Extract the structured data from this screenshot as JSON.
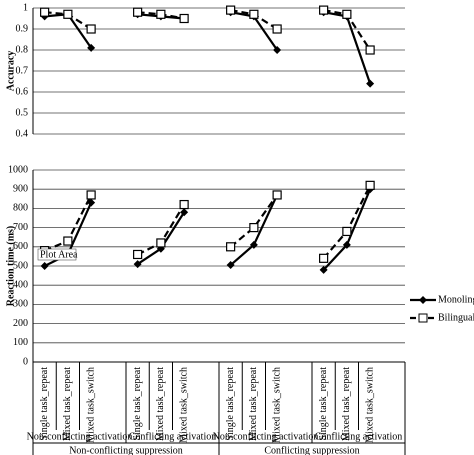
{
  "chart_data": [
    {
      "type": "line",
      "y_label": "Accuracy",
      "ylim": [
        0.4,
        1
      ],
      "yticks": [
        0.4,
        0.5,
        0.6,
        0.7,
        0.8,
        0.9,
        1
      ],
      "grid": true,
      "series": [
        {
          "color": "#000000",
          "marker": "diamond",
          "dashed": false,
          "values": [
            0.96,
            0.97,
            0.81,
            0.97,
            0.96,
            0.95,
            0.98,
            0.96,
            0.8,
            0.98,
            0.96,
            0.64
          ]
        },
        {
          "color": "#000000",
          "marker": "square",
          "dashed": true,
          "values": [
            0.98,
            0.97,
            0.9,
            0.98,
            0.97,
            0.95,
            0.99,
            0.97,
            0.9,
            0.99,
            0.97,
            0.8
          ]
        }
      ]
    },
    {
      "type": "line",
      "y_label": "Reaction time (ms)",
      "annotation": "Plot Area",
      "categories": [
        "Single task_repeat",
        "Mixed task_repeat",
        "Mixed task_switch",
        "Single task_repeat",
        "Mixed task_repeat",
        "Mixed task_switch",
        "Single task_repeat",
        "Mixed task_repeat",
        "Mixed task_switch",
        "Single task_repeat",
        "Mixed task_repeat",
        "Mixed task_switch"
      ],
      "groups": [
        "Non-conflicting activation",
        "Conflicting activation",
        "Non-conflicting activation",
        "Conflicting activation"
      ],
      "supergroups": [
        "Non-conflicting suppression",
        "Conflicting suppression"
      ],
      "ylim": [
        0,
        1000
      ],
      "yticks": [
        0,
        100,
        200,
        300,
        400,
        500,
        600,
        700,
        800,
        900,
        1000
      ],
      "grid": true,
      "series": [
        {
          "name": "Monolinguals",
          "color": "#000000",
          "marker": "diamond",
          "dashed": false,
          "values": [
            500,
            560,
            830,
            510,
            590,
            780,
            505,
            610,
            870,
            480,
            610,
            900
          ]
        },
        {
          "name": "Bilinguals",
          "color": "#000000",
          "marker": "square",
          "dashed": true,
          "values": [
            580,
            630,
            870,
            560,
            620,
            820,
            600,
            700,
            870,
            540,
            680,
            920
          ]
        }
      ]
    }
  ]
}
